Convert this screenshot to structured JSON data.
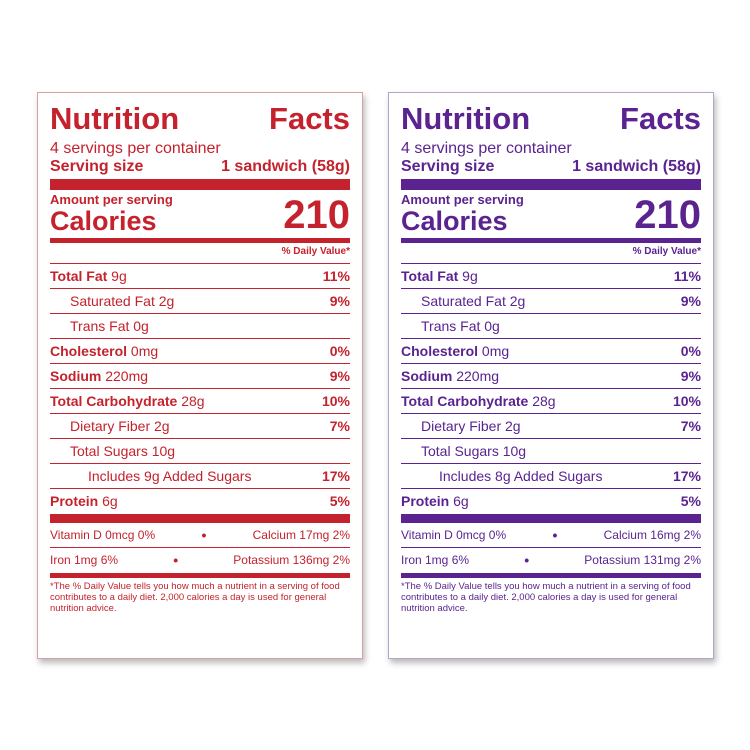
{
  "labels": [
    {
      "id": "red",
      "title_left": "Nutrition",
      "title_right": "Facts",
      "servings": "4 servings per container",
      "serving_size_label": "Serving size",
      "serving_size_value": "1 sandwich (58g)",
      "amount_per_serving": "Amount per serving",
      "calories_label": "Calories",
      "calories_value": "210",
      "dv_header": "% Daily Value*",
      "rows": [
        {
          "bold": "Total Fat",
          "amt": " 9g",
          "pct": "11%"
        },
        {
          "bold": "",
          "amt": "Saturated Fat 2g",
          "pct": "9%"
        },
        {
          "bold": "",
          "amt": "Trans Fat 0g",
          "pct": ""
        },
        {
          "bold": "Cholesterol",
          "amt": " 0mg",
          "pct": "0%"
        },
        {
          "bold": "Sodium",
          "amt": " 220mg",
          "pct": "9%"
        },
        {
          "bold": "Total Carbohydrate",
          "amt": " 28g",
          "pct": "10%"
        },
        {
          "bold": "",
          "amt": "Dietary Fiber 2g",
          "pct": "7%"
        },
        {
          "bold": "",
          "amt": "Total Sugars 10g",
          "pct": ""
        },
        {
          "bold": "",
          "amt": "Includes 9g Added Sugars",
          "pct": "17%"
        },
        {
          "bold": "Protein",
          "amt": " 6g",
          "pct": "5%"
        }
      ],
      "vitamin_d": "Vitamin D 0mcg 0%",
      "calcium": "Calcium 17mg 2%",
      "iron": "Iron 1mg 6%",
      "potassium": "Potassium 136mg 2%",
      "bullet": "•",
      "footnote": "*The % Daily Value tells you how much a nutrient in a serving of food contributes to a daily diet. 2,000 calories a day is used for general nutrition advice."
    },
    {
      "id": "purple",
      "title_left": "Nutrition",
      "title_right": "Facts",
      "servings": "4 servings per container",
      "serving_size_label": "Serving size",
      "serving_size_value": "1 sandwich (58g)",
      "amount_per_serving": "Amount per serving",
      "calories_label": "Calories",
      "calories_value": "210",
      "dv_header": "% Daily Value*",
      "rows": [
        {
          "bold": "Total Fat",
          "amt": " 9g",
          "pct": "11%"
        },
        {
          "bold": "",
          "amt": "Saturated Fat 2g",
          "pct": "9%"
        },
        {
          "bold": "",
          "amt": "Trans Fat 0g",
          "pct": ""
        },
        {
          "bold": "Cholesterol",
          "amt": " 0mg",
          "pct": "0%"
        },
        {
          "bold": "Sodium",
          "amt": " 220mg",
          "pct": "9%"
        },
        {
          "bold": "Total Carbohydrate",
          "amt": " 28g",
          "pct": "10%"
        },
        {
          "bold": "",
          "amt": "Dietary Fiber 2g",
          "pct": "7%"
        },
        {
          "bold": "",
          "amt": "Total Sugars 10g",
          "pct": ""
        },
        {
          "bold": "",
          "amt": "Includes 8g Added Sugars",
          "pct": "17%"
        },
        {
          "bold": "Protein",
          "amt": " 6g",
          "pct": "5%"
        }
      ],
      "vitamin_d": "Vitamin D 0mcg 0%",
      "calcium": "Calcium 16mg 2%",
      "iron": "Iron 1mg 6%",
      "potassium": "Potassium 131mg 2%",
      "bullet": "•",
      "footnote": "*The % Daily Value tells you how much a nutrient in a serving of food contributes to a daily diet. 2,000 calories a day is used for general nutrition advice."
    }
  ],
  "colors": {
    "red": "#c4222c",
    "purple": "#5a2390"
  }
}
